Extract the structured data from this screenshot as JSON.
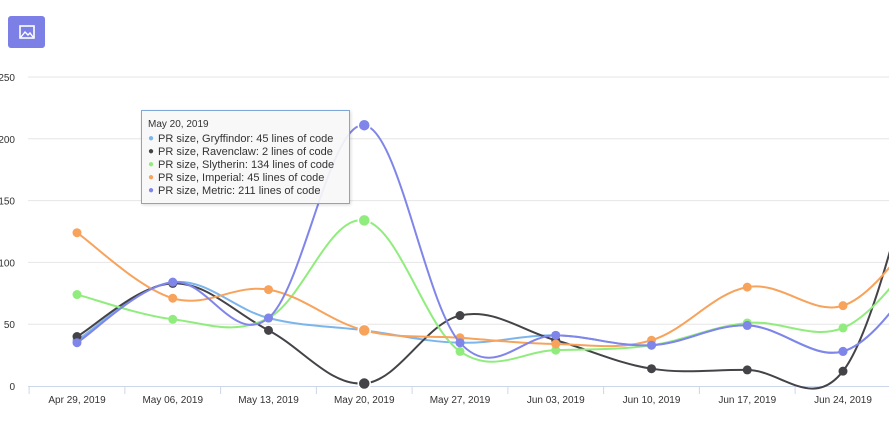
{
  "toolbar": {
    "export_icon": "image-icon"
  },
  "tooltip": {
    "date": "May 20, 2019",
    "rows": [
      {
        "text": "PR size, Gryffindor: 45 lines of code",
        "color": "#7cb5ec"
      },
      {
        "text": "PR size, Ravenclaw: 2 lines of code",
        "color": "#434348"
      },
      {
        "text": "PR size, Slytherin: 134 lines of code",
        "color": "#90ed7d"
      },
      {
        "text": "PR size, Imperial: 45 lines of code",
        "color": "#f7a35c"
      },
      {
        "text": "PR size, Metric: 211 lines of code",
        "color": "#8085e9"
      }
    ]
  },
  "chart_data": {
    "type": "line",
    "categories": [
      "Apr 29, 2019",
      "May 06, 2019",
      "May 13, 2019",
      "May 20, 2019",
      "May 27, 2019",
      "Jun 03, 2019",
      "Jun 10, 2019",
      "Jun 17, 2019",
      "Jun 24, 2019"
    ],
    "y_ticks": [
      "0",
      "50",
      "100",
      "150",
      "200",
      "250"
    ],
    "ylim": [
      0,
      250
    ],
    "grid": true,
    "series": [
      {
        "name": "PR size, Gryffindor",
        "color": "#7cb5ec",
        "values": [
          37,
          84,
          55,
          45,
          35,
          41,
          33,
          49,
          28
        ]
      },
      {
        "name": "PR size, Ravenclaw",
        "color": "#434348",
        "values": [
          40,
          83,
          45,
          2,
          57,
          37,
          14,
          13,
          12
        ]
      },
      {
        "name": "PR size, Slytherin",
        "color": "#90ed7d",
        "values": [
          74,
          54,
          55,
          134,
          28,
          29,
          33,
          51,
          47
        ]
      },
      {
        "name": "PR size, Imperial",
        "color": "#f7a35c",
        "values": [
          124,
          71,
          78,
          45,
          39,
          34,
          37,
          80,
          65
        ]
      },
      {
        "name": "PR size, Metric",
        "color": "#8085e9",
        "values": [
          35,
          84,
          55,
          211,
          35,
          41,
          33,
          49,
          28
        ]
      }
    ],
    "tooltip_index": 3
  }
}
